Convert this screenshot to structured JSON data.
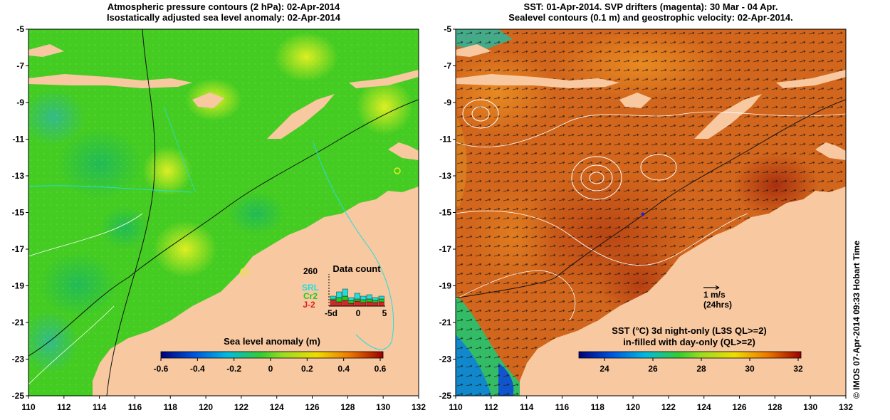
{
  "left_panel": {
    "title_line1": "Atmospheric pressure contours (2 hPa): 02-Apr-2014",
    "title_line2": "Isostatically adjusted sea level anomaly: 02-Apr-2014",
    "colorbar_label": "Sea level anomaly (m)",
    "colorbar_ticks": [
      "-0.6",
      "-0.4",
      "-0.2",
      "0",
      "0.2",
      "0.4",
      "0.6"
    ],
    "inset": {
      "title": "Data count",
      "max_label": "260",
      "missions": [
        {
          "name": "SRL",
          "color": "#22dddd"
        },
        {
          "name": "Cr2",
          "color": "#22cc22"
        },
        {
          "name": "J-2",
          "color": "#dd2222"
        }
      ],
      "x_ticks": [
        "-5d",
        "0",
        "5"
      ]
    }
  },
  "right_panel": {
    "title_line1": "SST: 01-Apr-2014. SVP drifters (magenta): 30 Mar - 04 Apr.",
    "title_line2": "Sealevel contours (0.1 m) and geostrophic velocity: 02-Apr-2014.",
    "colorbar_label_line1": "SST (°C)  3d night-only (L3S QL>=2)",
    "colorbar_label_line2": "in-filled with day-only (QL>=2)",
    "colorbar_ticks": [
      "24",
      "26",
      "28",
      "30",
      "32"
    ],
    "scale_arrow_label": "1 m/s",
    "scale_arrow_sublabel": "(24hrs)"
  },
  "axes": {
    "y_ticks": [
      "-5",
      "-7",
      "-9",
      "-11",
      "-13",
      "-15",
      "-17",
      "-19",
      "-21",
      "-23",
      "-25"
    ],
    "x_ticks": [
      "110",
      "112",
      "114",
      "116",
      "118",
      "120",
      "122",
      "124",
      "126",
      "128",
      "130",
      "132"
    ]
  },
  "credit": "© IMOS 07-Apr-2014 09:33 Hobart Time",
  "colors": {
    "land": "#f8c8a0",
    "sla_base": "#44cc22",
    "sst_base": "#d2661c",
    "contour_white": "#ffffff",
    "contour_black": "#111111",
    "cyan": "#22dddd"
  }
}
